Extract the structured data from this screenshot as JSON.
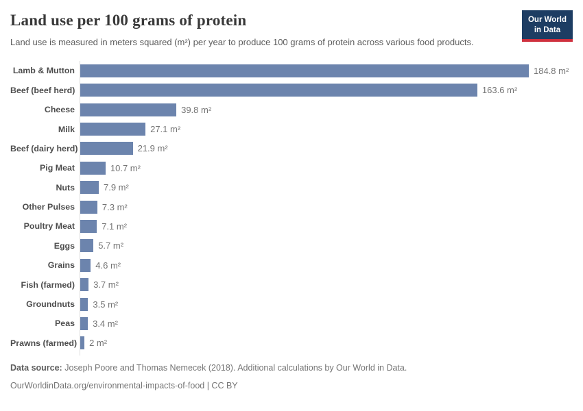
{
  "header": {
    "title": "Land use per 100 grams of protein",
    "subtitle": "Land use is measured in meters squared (m²) per year to produce 100 grams of protein across various food products."
  },
  "logo": {
    "line1": "Our World",
    "line2": "in Data",
    "bg_color": "#1d3d63",
    "accent_color": "#cf303e"
  },
  "chart_data": {
    "type": "bar",
    "orientation": "horizontal",
    "title": "Land use per 100 grams of protein",
    "categories": [
      "Lamb & Mutton",
      "Beef (beef herd)",
      "Cheese",
      "Milk",
      "Beef (dairy herd)",
      "Pig Meat",
      "Nuts",
      "Other Pulses",
      "Poultry Meat",
      "Eggs",
      "Grains",
      "Fish (farmed)",
      "Groundnuts",
      "Peas",
      "Prawns (farmed)"
    ],
    "values": [
      184.8,
      163.6,
      39.8,
      27.1,
      21.9,
      10.7,
      7.9,
      7.3,
      7.1,
      5.7,
      4.6,
      3.7,
      3.5,
      3.4,
      2
    ],
    "unit": "m²",
    "value_label_format": "{value} m²",
    "xlim": [
      0,
      184.8
    ],
    "grid": false,
    "legend": "none",
    "bar_color": "#6c84ad",
    "axis_line_color": "#dcdcdc"
  },
  "footer": {
    "source_label": "Data source:",
    "source_text": "Joseph Poore and Thomas Nemecek (2018). Additional calculations by Our World in Data.",
    "link_line": "OurWorldinData.org/environmental-impacts-of-food | CC BY"
  }
}
